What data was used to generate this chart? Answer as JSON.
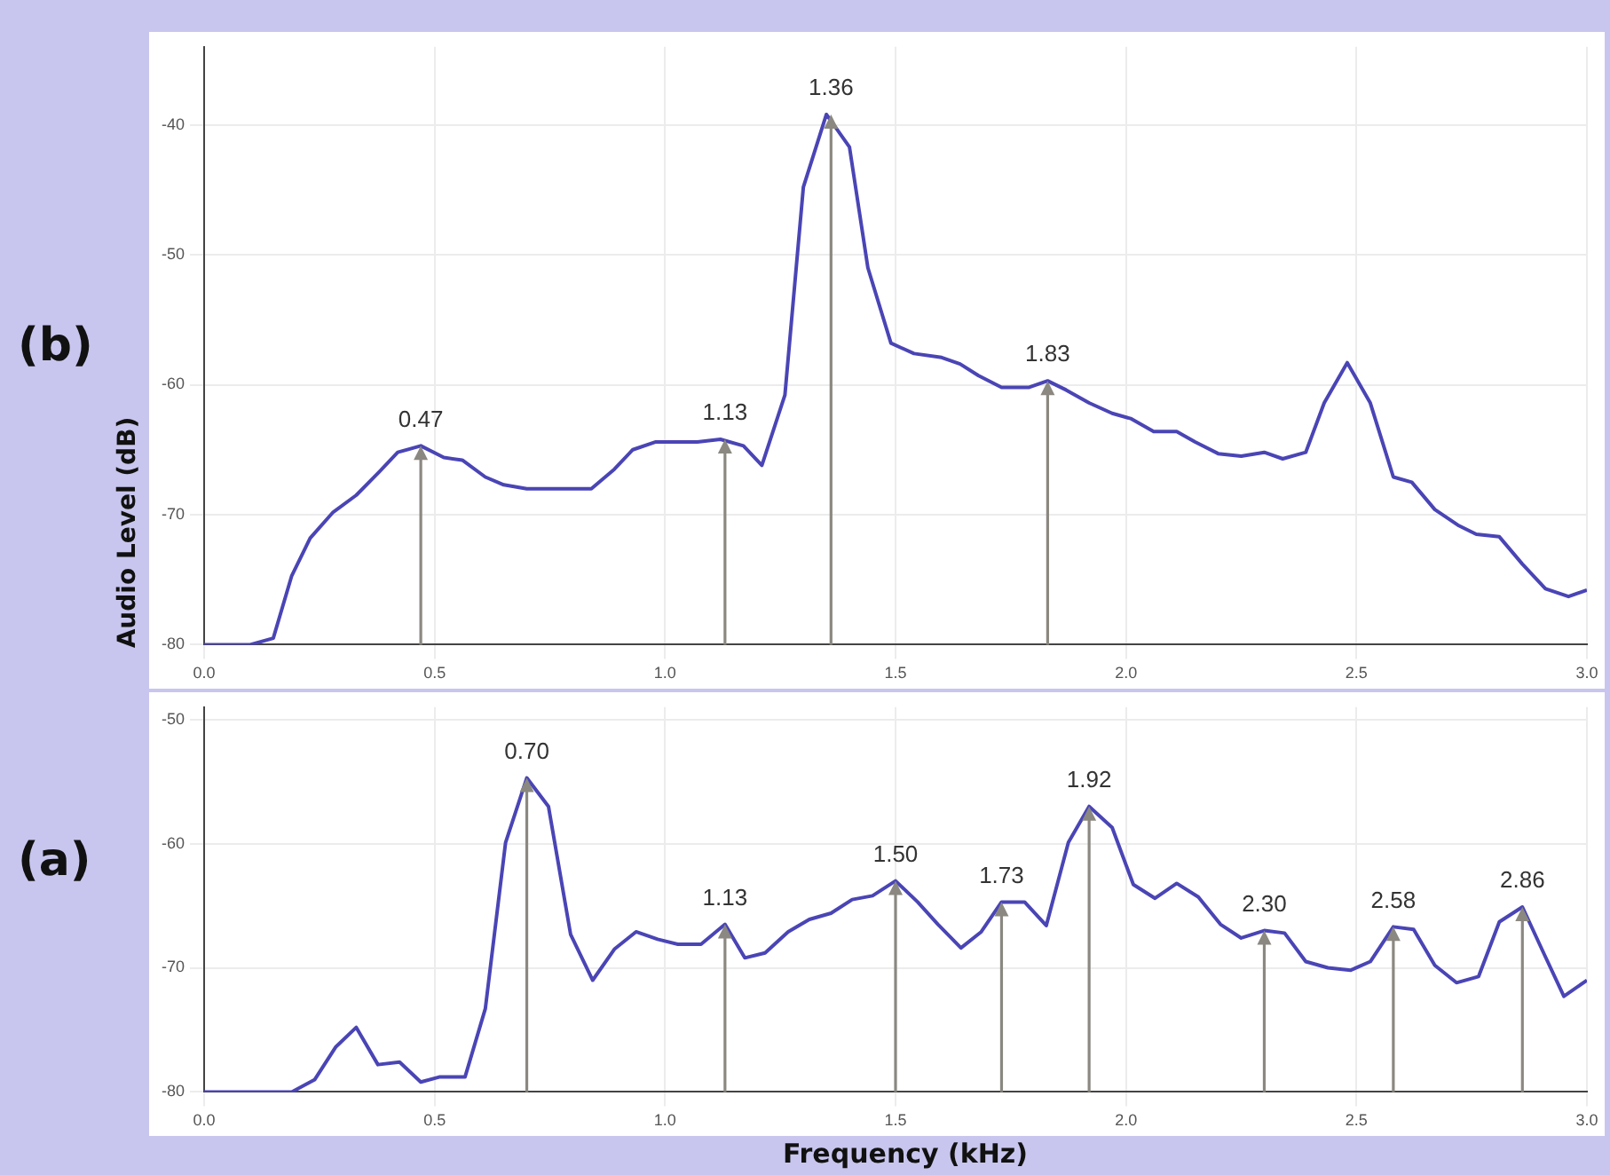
{
  "chart_data": [
    {
      "type": "line",
      "title": "(b)",
      "ylabel": "Audio Level (dB)",
      "grid": true,
      "marker": "none",
      "xlim": [
        0,
        3
      ],
      "xticks": [
        {
          "value": 0,
          "label": "0.0"
        },
        0.5,
        {
          "value": 1,
          "label": "1.0"
        },
        1.5,
        {
          "value": 2,
          "label": "2.0"
        },
        2.5,
        {
          "value": 3,
          "label": "3.0"
        }
      ],
      "ylim": [
        -80,
        -34
      ],
      "yticks": [
        -80,
        -70,
        -60,
        -50,
        -40
      ],
      "series": [
        {
          "color": "#4a45b5",
          "x": [
            0,
            0.1,
            0.15,
            0.19,
            0.23,
            0.28,
            0.33,
            0.38,
            0.42,
            0.47,
            0.52,
            0.56,
            0.61,
            0.65,
            0.7,
            0.84,
            0.89,
            0.93,
            0.98,
            1.07,
            1.12,
            1.17,
            1.21,
            1.26,
            1.3,
            1.35,
            1.4,
            1.44,
            1.49,
            1.54,
            1.6,
            1.64,
            1.68,
            1.73,
            1.79,
            1.83,
            1.87,
            1.92,
            1.97,
            2.01,
            2.06,
            2.11,
            2.15,
            2.2,
            2.25,
            2.3,
            2.34,
            2.39,
            2.43,
            2.48,
            2.53,
            2.58,
            2.62,
            2.67,
            2.72,
            2.76,
            2.81,
            2.86,
            2.91,
            2.96,
            3.0
          ],
          "values": [
            -80,
            -80,
            -79.5,
            -74.7,
            -71.8,
            -69.8,
            -68.5,
            -66.7,
            -65.2,
            -64.7,
            -65.6,
            -65.8,
            -67.1,
            -67.7,
            -68,
            -68,
            -66.5,
            -65,
            -64.4,
            -64.4,
            -64.2,
            -64.7,
            -66.2,
            -60.8,
            -44.8,
            -39.2,
            -41.7,
            -51,
            -56.8,
            -57.6,
            -57.9,
            -58.4,
            -59.3,
            -60.2,
            -60.2,
            -59.7,
            -60.4,
            -61.4,
            -62.2,
            -62.6,
            -63.6,
            -63.6,
            -64.4,
            -65.3,
            -65.5,
            -65.2,
            -65.7,
            -65.2,
            -61.4,
            -58.3,
            -61.4,
            -67.1,
            -67.5,
            -69.6,
            -70.8,
            -71.5,
            -71.7,
            -73.8,
            -75.7,
            -76.3,
            -75.8
          ]
        }
      ],
      "annotations": [
        {
          "text": "0.47",
          "x": 0.47,
          "y": -64.7
        },
        {
          "text": "1.13",
          "x": 1.13,
          "y": -64.2
        },
        {
          "text": "1.36",
          "x": 1.36,
          "y": -39.2
        },
        {
          "text": "1.83",
          "x": 1.83,
          "y": -59.7
        }
      ]
    },
    {
      "type": "line",
      "title": "(a)",
      "xlabel": "Frequency (kHz)",
      "grid": true,
      "marker": "none",
      "xlim": [
        0,
        3
      ],
      "xticks": [
        {
          "value": 0,
          "label": "0.0"
        },
        0.5,
        {
          "value": 1,
          "label": "1.0"
        },
        1.5,
        {
          "value": 2,
          "label": "2.0"
        },
        2.5,
        {
          "value": 3,
          "label": "3.0"
        }
      ],
      "ylim": [
        -80,
        -49
      ],
      "yticks": [
        -80,
        -70,
        -60,
        -50
      ],
      "series": [
        {
          "color": "#4a45b5",
          "x": [
            0,
            0.19,
            0.24,
            0.285,
            0.33,
            0.377,
            0.424,
            0.47,
            0.51,
            0.566,
            0.61,
            0.654,
            0.7,
            0.747,
            0.795,
            0.843,
            0.89,
            0.937,
            0.984,
            1.028,
            1.078,
            1.13,
            1.173,
            1.217,
            1.267,
            1.313,
            1.36,
            1.406,
            1.45,
            1.5,
            1.548,
            1.592,
            1.642,
            1.686,
            1.73,
            1.78,
            1.827,
            1.875,
            1.92,
            1.97,
            2.016,
            2.063,
            2.11,
            2.157,
            2.205,
            2.25,
            2.3,
            2.344,
            2.39,
            2.438,
            2.487,
            2.53,
            2.58,
            2.624,
            2.67,
            2.717,
            2.765,
            2.81,
            2.86,
            2.906,
            2.95,
            3.0
          ],
          "values": [
            -80,
            -80,
            -79,
            -76.4,
            -74.8,
            -77.8,
            -77.6,
            -79.2,
            -78.8,
            -78.8,
            -73.3,
            -59.9,
            -54.7,
            -57,
            -67.3,
            -71,
            -68.5,
            -67.1,
            -67.7,
            -68.1,
            -68.1,
            -66.5,
            -69.2,
            -68.8,
            -67.1,
            -66.1,
            -65.6,
            -64.5,
            -64.2,
            -63,
            -64.7,
            -66.5,
            -68.4,
            -67.1,
            -64.7,
            -64.7,
            -66.6,
            -59.9,
            -57,
            -58.7,
            -63.3,
            -64.4,
            -63.2,
            -64.3,
            -66.5,
            -67.6,
            -67,
            -67.2,
            -69.5,
            -70,
            -70.2,
            -69.5,
            -66.7,
            -66.9,
            -69.8,
            -71.2,
            -70.7,
            -66.3,
            -65.1,
            -68.8,
            -72.3,
            -71
          ]
        }
      ],
      "annotations": [
        {
          "text": "0.70",
          "x": 0.7,
          "y": -54.7
        },
        {
          "text": "1.13",
          "x": 1.13,
          "y": -66.5
        },
        {
          "text": "1.50",
          "x": 1.5,
          "y": -63
        },
        {
          "text": "1.73",
          "x": 1.73,
          "y": -64.7
        },
        {
          "text": "1.92",
          "x": 1.92,
          "y": -57
        },
        {
          "text": "2.30",
          "x": 2.3,
          "y": -67
        },
        {
          "text": "2.58",
          "x": 2.58,
          "y": -66.7
        },
        {
          "text": "2.86",
          "x": 2.86,
          "y": -65.1
        }
      ]
    }
  ]
}
